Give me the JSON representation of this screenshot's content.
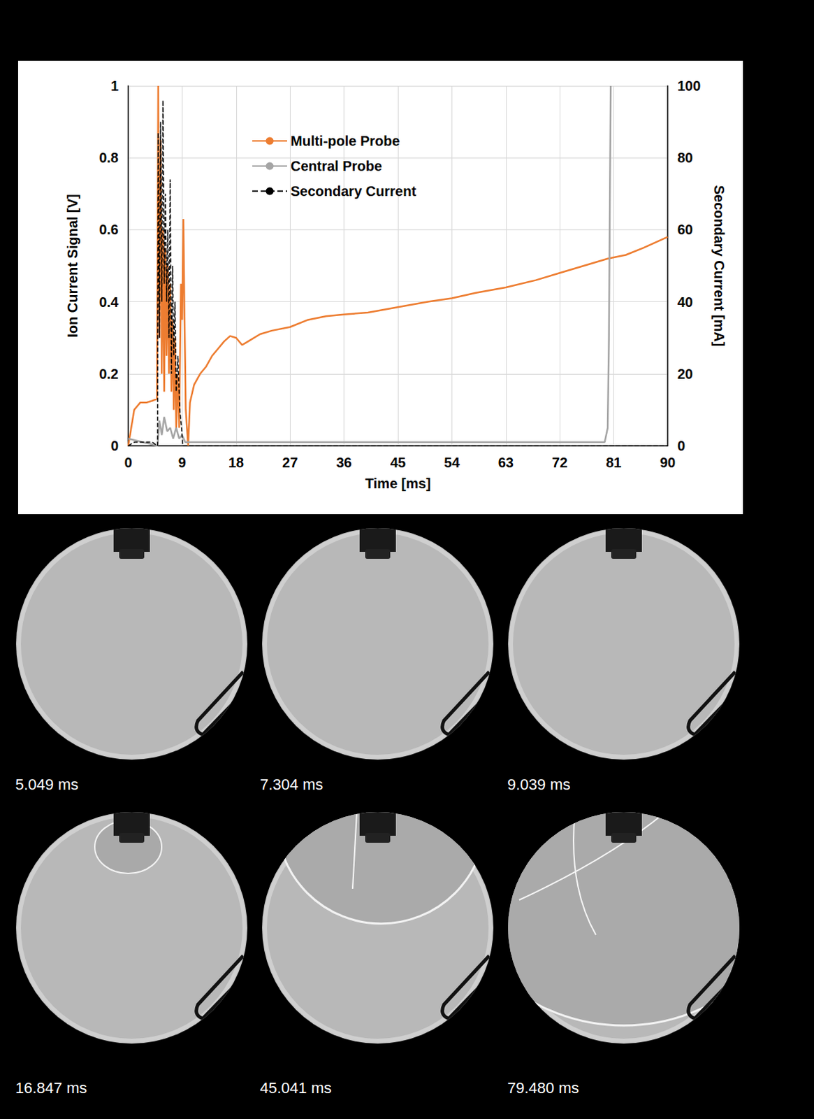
{
  "chart_data": {
    "type": "line",
    "xlabel": "Time [ms]",
    "ylabel": "Ion Current Signal [V]",
    "y2label": "Secondary Current [mA]",
    "xlim": [
      0,
      90
    ],
    "xticks": [
      0,
      9,
      18,
      27,
      36,
      45,
      54,
      63,
      72,
      81,
      90
    ],
    "ylim": [
      0,
      1
    ],
    "yticks": [
      0,
      0.2,
      0.4,
      0.6,
      0.8,
      1
    ],
    "y2lim": [
      0,
      100
    ],
    "y2ticks": [
      0,
      20,
      40,
      60,
      80,
      100
    ],
    "grid": true,
    "legend": "upper center",
    "series": [
      {
        "name": "Multi-pole Probe",
        "color": "#ed7d31",
        "line_style": "solid",
        "x": [
          0,
          0.5,
          1,
          1.5,
          2,
          3,
          4,
          4.8,
          5.0,
          5.2,
          5.4,
          5.6,
          5.8,
          6.0,
          6.2,
          6.4,
          6.6,
          6.8,
          7.0,
          7.2,
          7.4,
          7.6,
          7.8,
          8.0,
          8.2,
          8.5,
          8.8,
          9.0,
          9.2,
          9.4,
          9.6,
          10.0,
          10.3,
          11,
          12,
          13,
          14,
          15,
          16,
          17,
          18,
          19,
          20,
          22,
          24,
          27,
          30,
          33,
          36,
          40,
          45,
          50,
          54,
          58,
          63,
          68,
          72,
          76,
          80,
          83,
          86,
          88,
          90
        ],
        "values": [
          0,
          0.05,
          0.1,
          0.11,
          0.12,
          0.12,
          0.125,
          0.13,
          1.0,
          0.3,
          0.85,
          0.2,
          0.6,
          0.15,
          0.55,
          0.25,
          0.5,
          0.2,
          0.45,
          0.15,
          0.35,
          0.1,
          0.3,
          0.05,
          0.2,
          0.05,
          0.45,
          0.35,
          0.63,
          0.35,
          0.1,
          0.0,
          0.12,
          0.17,
          0.2,
          0.22,
          0.25,
          0.27,
          0.29,
          0.305,
          0.3,
          0.28,
          0.29,
          0.31,
          0.32,
          0.33,
          0.35,
          0.36,
          0.365,
          0.37,
          0.385,
          0.4,
          0.41,
          0.425,
          0.44,
          0.46,
          0.48,
          0.5,
          0.52,
          0.53,
          0.55,
          0.565,
          0.58
        ]
      },
      {
        "name": "Central Probe",
        "color": "#a5a5a5",
        "line_style": "solid",
        "x": [
          0,
          4.9,
          5.2,
          5.6,
          6.0,
          6.5,
          7.0,
          7.5,
          8.0,
          8.5,
          9.0,
          9.5,
          20,
          40,
          60,
          79.5,
          80.0,
          80.2,
          80.5
        ],
        "values": [
          0.02,
          0.0,
          0.07,
          0.03,
          0.08,
          0.04,
          0.05,
          0.02,
          0.05,
          0.02,
          0.03,
          0.01,
          0.01,
          0.01,
          0.01,
          0.01,
          0.05,
          0.3,
          1.0
        ]
      },
      {
        "name": "Secondary Current",
        "color": "#000000",
        "line_style": "dashed",
        "axis": "y2",
        "x": [
          0,
          1,
          2,
          3,
          4,
          4.9,
          5.0,
          5.2,
          5.4,
          5.6,
          5.8,
          6.0,
          6.2,
          6.4,
          6.6,
          6.8,
          7.0,
          7.2,
          7.4,
          7.6,
          7.8,
          8.0,
          8.3,
          8.6,
          8.9,
          9.1,
          90
        ],
        "values": [
          0,
          1,
          1,
          1,
          1,
          0,
          87,
          30,
          90,
          40,
          96,
          45,
          70,
          40,
          60,
          30,
          74,
          20,
          50,
          25,
          40,
          15,
          25,
          10,
          5,
          0,
          0
        ]
      }
    ]
  },
  "frames": [
    {
      "caption": "5.049 ms"
    },
    {
      "caption": "7.304 ms"
    },
    {
      "caption": "9.039 ms"
    },
    {
      "caption": "16.847 ms"
    },
    {
      "caption": "45.041 ms"
    },
    {
      "caption": "79.480 ms"
    }
  ]
}
